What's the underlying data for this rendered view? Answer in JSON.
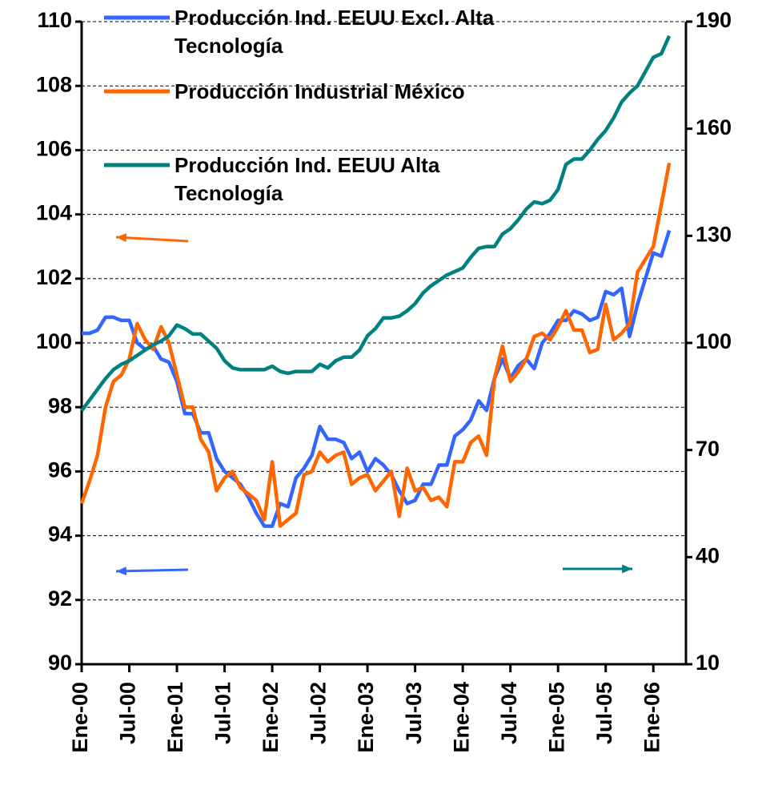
{
  "chart_data": {
    "type": "line",
    "categories": [
      "Ene-00",
      null,
      null,
      null,
      null,
      null,
      "Jul-00",
      null,
      null,
      null,
      null,
      null,
      "Ene-01",
      null,
      null,
      null,
      null,
      null,
      "Jul-01",
      null,
      null,
      null,
      null,
      null,
      "Ene-02",
      null,
      null,
      null,
      null,
      null,
      "Jul-02",
      null,
      null,
      null,
      null,
      null,
      "Ene-03",
      null,
      null,
      null,
      null,
      null,
      "Jul-03",
      null,
      null,
      null,
      null,
      null,
      "Ene-04",
      null,
      null,
      null,
      null,
      null,
      "Jul-04",
      null,
      null,
      null,
      null,
      null,
      "Ene-05",
      null,
      null,
      null,
      null,
      null,
      "Jul-05",
      null,
      null,
      null,
      null,
      null,
      "Ene-06",
      null,
      null
    ],
    "series": [
      {
        "name": "Producción Ind. EEUU Excl. Alta Tecnología",
        "color": "#3366ff",
        "values": [
          100.3,
          100.3,
          100.4,
          100.8,
          100.8,
          100.7,
          100.7,
          100.0,
          99.8,
          99.9,
          99.5,
          99.4,
          98.8,
          97.8,
          97.8,
          97.2,
          97.2,
          96.4,
          96.0,
          95.8,
          95.6,
          95.2,
          94.7,
          94.3,
          94.3,
          95.0,
          94.9,
          95.8,
          96.1,
          96.5,
          97.4,
          97.0,
          97.0,
          96.9,
          96.4,
          96.6,
          96.0,
          96.4,
          96.2,
          95.9,
          95.4,
          95.0,
          95.1,
          95.6,
          95.6,
          96.2,
          96.2,
          97.1,
          97.3,
          97.6,
          98.2,
          97.9,
          98.9,
          99.5,
          98.9,
          99.3,
          99.5,
          99.2,
          100.0,
          100.3,
          100.7,
          100.7,
          101.0,
          100.9,
          100.7,
          100.8,
          101.6,
          101.5,
          101.7,
          100.2,
          101.2,
          102.0,
          102.8,
          102.7,
          103.5
        ]
      },
      {
        "name": "Producción Industrial México",
        "color": "#ff6600",
        "values": [
          95.0,
          95.7,
          96.5,
          98.0,
          98.8,
          99.0,
          99.5,
          100.6,
          100.1,
          99.8,
          100.5,
          100.0,
          99.0,
          98.0,
          98.0,
          97.0,
          96.6,
          95.4,
          95.8,
          96.0,
          95.5,
          95.3,
          95.1,
          94.5,
          96.3,
          94.3,
          94.5,
          94.7,
          95.9,
          96.0,
          96.6,
          96.3,
          96.5,
          96.6,
          95.6,
          95.8,
          95.9,
          95.4,
          95.7,
          96.0,
          94.6,
          96.1,
          95.4,
          95.5,
          95.1,
          95.2,
          94.9,
          96.3,
          96.3,
          96.9,
          97.1,
          96.5,
          98.9,
          99.9,
          98.8,
          99.1,
          99.5,
          100.2,
          100.3,
          100.1,
          100.5,
          101.0,
          100.4,
          100.4,
          99.7,
          99.8,
          101.2,
          100.1,
          100.3,
          100.6,
          102.2,
          102.6,
          103.0,
          104.3,
          105.6
        ]
      },
      {
        "name": "Producción Ind. EEUU Alta Tecnología",
        "color": "#008080",
        "axis": "y2",
        "values": [
          81,
          84,
          87,
          90,
          92.5,
          94,
          95,
          96.5,
          98,
          99.5,
          100.5,
          102,
          105,
          104,
          102.5,
          102.5,
          100.5,
          98.5,
          95,
          93,
          92.5,
          92.5,
          92.5,
          92.5,
          93.5,
          92,
          91.5,
          92,
          92,
          92,
          94,
          93,
          95,
          96,
          96,
          98,
          102,
          104,
          107,
          107,
          107.5,
          109,
          111,
          114,
          116,
          117.5,
          119,
          120,
          121,
          124,
          126.5,
          127,
          127,
          130.5,
          132,
          134.5,
          137.5,
          139.5,
          139,
          140,
          143,
          150,
          151.5,
          151.5,
          154,
          157,
          159.5,
          163,
          167.5,
          170,
          172,
          176,
          180,
          181,
          186
        ]
      }
    ],
    "ylim": [
      90,
      110
    ],
    "yticks": [
      90,
      92,
      94,
      96,
      98,
      100,
      102,
      104,
      106,
      108,
      110
    ],
    "y2lim": [
      10,
      190
    ],
    "y2ticks": [
      10,
      40,
      70,
      100,
      130,
      160,
      190
    ],
    "grid": true
  }
}
